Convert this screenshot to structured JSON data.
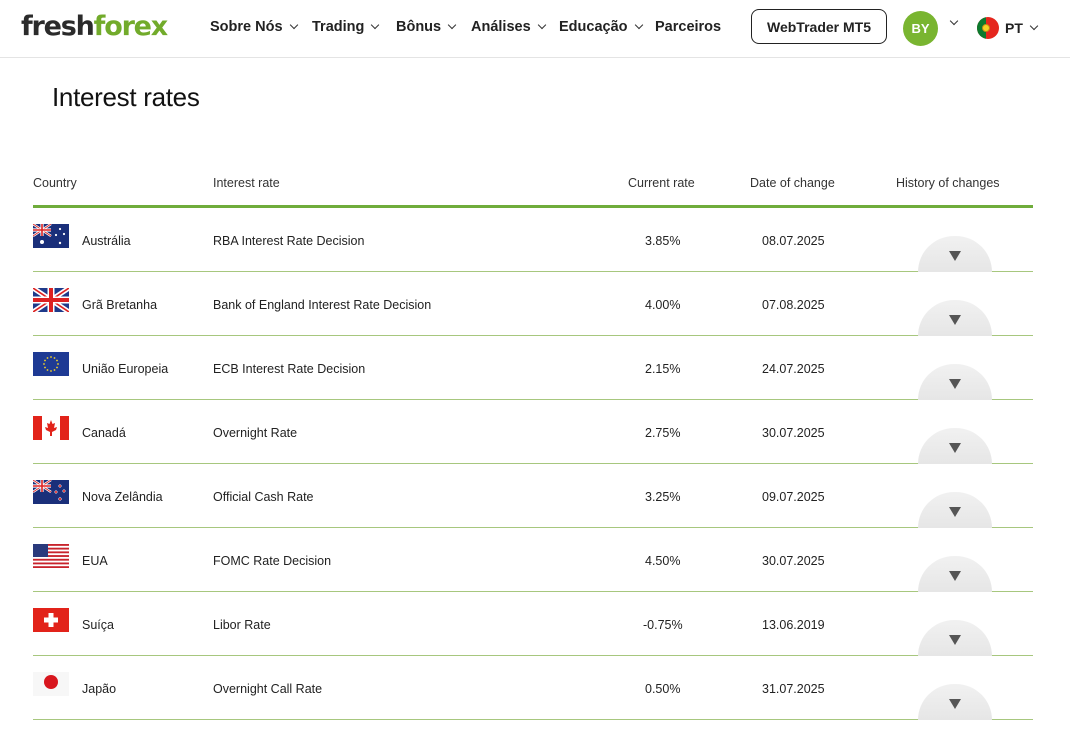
{
  "header": {
    "logo": {
      "part1": "fresh",
      "part2": "forex"
    },
    "nav": [
      {
        "label": "Sobre Nós",
        "has_dropdown": true
      },
      {
        "label": "Trading",
        "has_dropdown": true
      },
      {
        "label": "Bônus",
        "has_dropdown": true
      },
      {
        "label": "Análises",
        "has_dropdown": true
      },
      {
        "label": "Educação",
        "has_dropdown": true
      },
      {
        "label": "Parceiros",
        "has_dropdown": false
      }
    ],
    "webtrader_label": "WebTrader MT5",
    "avatar_initials": "BY",
    "language": "PT"
  },
  "page": {
    "title": "Interest rates"
  },
  "table": {
    "columns": [
      "Country",
      "Interest rate",
      "Current rate",
      "Date of change",
      "History of changes"
    ],
    "rows": [
      {
        "country": "Austrália",
        "flag": "australia-flag-icon",
        "rate_name": "RBA Interest Rate Decision",
        "current": "3.85%",
        "date": "08.07.2025"
      },
      {
        "country": "Grã Bretanha",
        "flag": "uk-flag-icon",
        "rate_name": "Bank of England Interest Rate Decision",
        "current": "4.00%",
        "date": "07.08.2025"
      },
      {
        "country": "União Europeia",
        "flag": "eu-flag-icon",
        "rate_name": "ECB Interest Rate Decision",
        "current": "2.15%",
        "date": "24.07.2025"
      },
      {
        "country": "Canadá",
        "flag": "canada-flag-icon",
        "rate_name": "Overnight Rate",
        "current": "2.75%",
        "date": "30.07.2025"
      },
      {
        "country": "Nova Zelândia",
        "flag": "new-zealand-flag-icon",
        "rate_name": "Official Cash Rate",
        "current": "3.25%",
        "date": "09.07.2025"
      },
      {
        "country": "EUA",
        "flag": "usa-flag-icon",
        "rate_name": "FOMC Rate Decision",
        "current": "4.50%",
        "date": "30.07.2025"
      },
      {
        "country": "Suíça",
        "flag": "switzerland-flag-icon",
        "rate_name": "Libor Rate",
        "current": "-0.75%",
        "date": "13.06.2019"
      },
      {
        "country": "Japão",
        "flag": "japan-flag-icon",
        "rate_name": "Overnight Call Rate",
        "current": "0.50%",
        "date": "31.07.2025"
      }
    ]
  },
  "colors": {
    "brand_green": "#72ab2b",
    "header_line": "#6fac3b",
    "row_divider": "#a7c77e",
    "avatar_bg": "#79b530"
  }
}
